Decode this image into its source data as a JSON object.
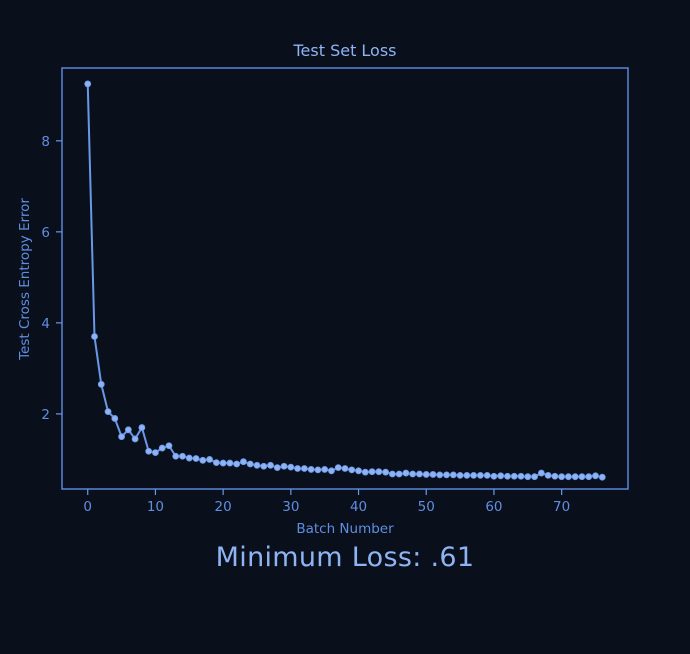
{
  "accent_color": "#6a98e8",
  "marker_color": "#8fb3f2",
  "background_color": "#0a0f1c",
  "summary": {
    "minimum_loss_text": "Minimum Loss: .61"
  },
  "chart_data": {
    "type": "line",
    "title": "Test Set Loss",
    "xlabel": "Batch Number",
    "ylabel": "Test Cross Entropy Error",
    "xlim": [
      -3.8,
      79.8
    ],
    "ylim": [
      0.35,
      9.6
    ],
    "xticks": [
      0,
      10,
      20,
      30,
      40,
      50,
      60,
      70
    ],
    "yticks": [
      2,
      4,
      6,
      8
    ],
    "grid": false,
    "legend": "none",
    "series": [
      {
        "x": [
          0,
          1,
          2,
          3,
          4,
          5,
          6,
          7,
          8,
          9,
          10,
          11,
          12,
          13,
          14,
          15,
          16,
          17,
          18,
          19,
          20,
          21,
          22,
          23,
          24,
          25,
          26,
          27,
          28,
          29,
          30,
          31,
          32,
          33,
          34,
          35,
          36,
          37,
          38,
          39,
          40,
          41,
          42,
          43,
          44,
          45,
          46,
          47,
          48,
          49,
          50,
          51,
          52,
          53,
          54,
          55,
          56,
          57,
          58,
          59,
          60,
          61,
          62,
          63,
          64,
          65,
          66,
          67,
          68,
          69,
          70,
          71,
          72,
          73,
          74,
          75,
          76
        ],
        "values": [
          9.25,
          3.7,
          2.65,
          2.05,
          1.9,
          1.5,
          1.65,
          1.45,
          1.7,
          1.18,
          1.15,
          1.25,
          1.3,
          1.07,
          1.07,
          1.03,
          1.02,
          0.98,
          1.0,
          0.93,
          0.92,
          0.92,
          0.9,
          0.95,
          0.9,
          0.87,
          0.85,
          0.87,
          0.82,
          0.85,
          0.83,
          0.8,
          0.8,
          0.78,
          0.77,
          0.78,
          0.75,
          0.82,
          0.8,
          0.77,
          0.75,
          0.72,
          0.73,
          0.73,
          0.72,
          0.68,
          0.68,
          0.7,
          0.68,
          0.68,
          0.67,
          0.67,
          0.66,
          0.66,
          0.66,
          0.65,
          0.65,
          0.65,
          0.65,
          0.65,
          0.63,
          0.64,
          0.63,
          0.63,
          0.63,
          0.62,
          0.62,
          0.7,
          0.65,
          0.63,
          0.62,
          0.62,
          0.62,
          0.62,
          0.62,
          0.64,
          0.61
        ]
      }
    ]
  }
}
